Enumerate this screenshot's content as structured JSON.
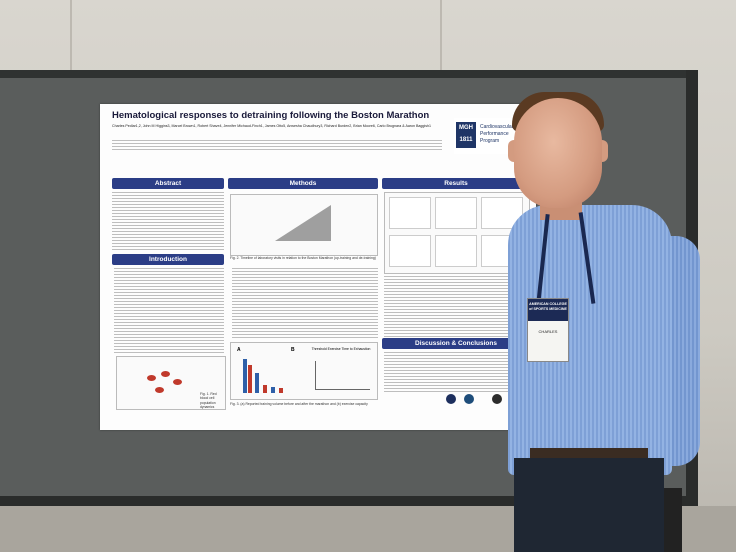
{
  "poster": {
    "title": "Hematological responses to detraining following the Boston Marathon",
    "authors": "Charles Pedlar1,2, John M Higgins3, Marcel Brown1, Robert Shave4, Jennifer Michaud-Finch1, James Otto5, Anwesha Chaudhury3, Richard Burden2, Brian Moore6, Carlo Brugnara & Aaron Baggish1",
    "logo": {
      "mark": "MGH 1811",
      "text": "Cardiovascular Performance Program"
    },
    "sections": {
      "abstract": "Abstract",
      "methods": "Methods",
      "results": "Results",
      "introduction": "Introduction",
      "discussion": "Discussion & Conclusions"
    },
    "figure_labels": {
      "fig_a": "A",
      "fig_b": "B",
      "fig_b_title": "Threshold Exercise Time to Exhaustion",
      "fig_caption_1": "Fig. 1. Red blood cell population dynamics",
      "fig_caption_2": "Fig. 2. Timeline of laboratory visits in relation to the Boston Marathon (up-training and de-training)",
      "fig_caption_3": "Fig. 3. (a) Reported training volume before and after the marathon and (b) exercise capacity"
    },
    "badge": {
      "org": "AMERICAN COLLEGE of SPORTS MEDICINE",
      "name": "CHARLES"
    }
  }
}
